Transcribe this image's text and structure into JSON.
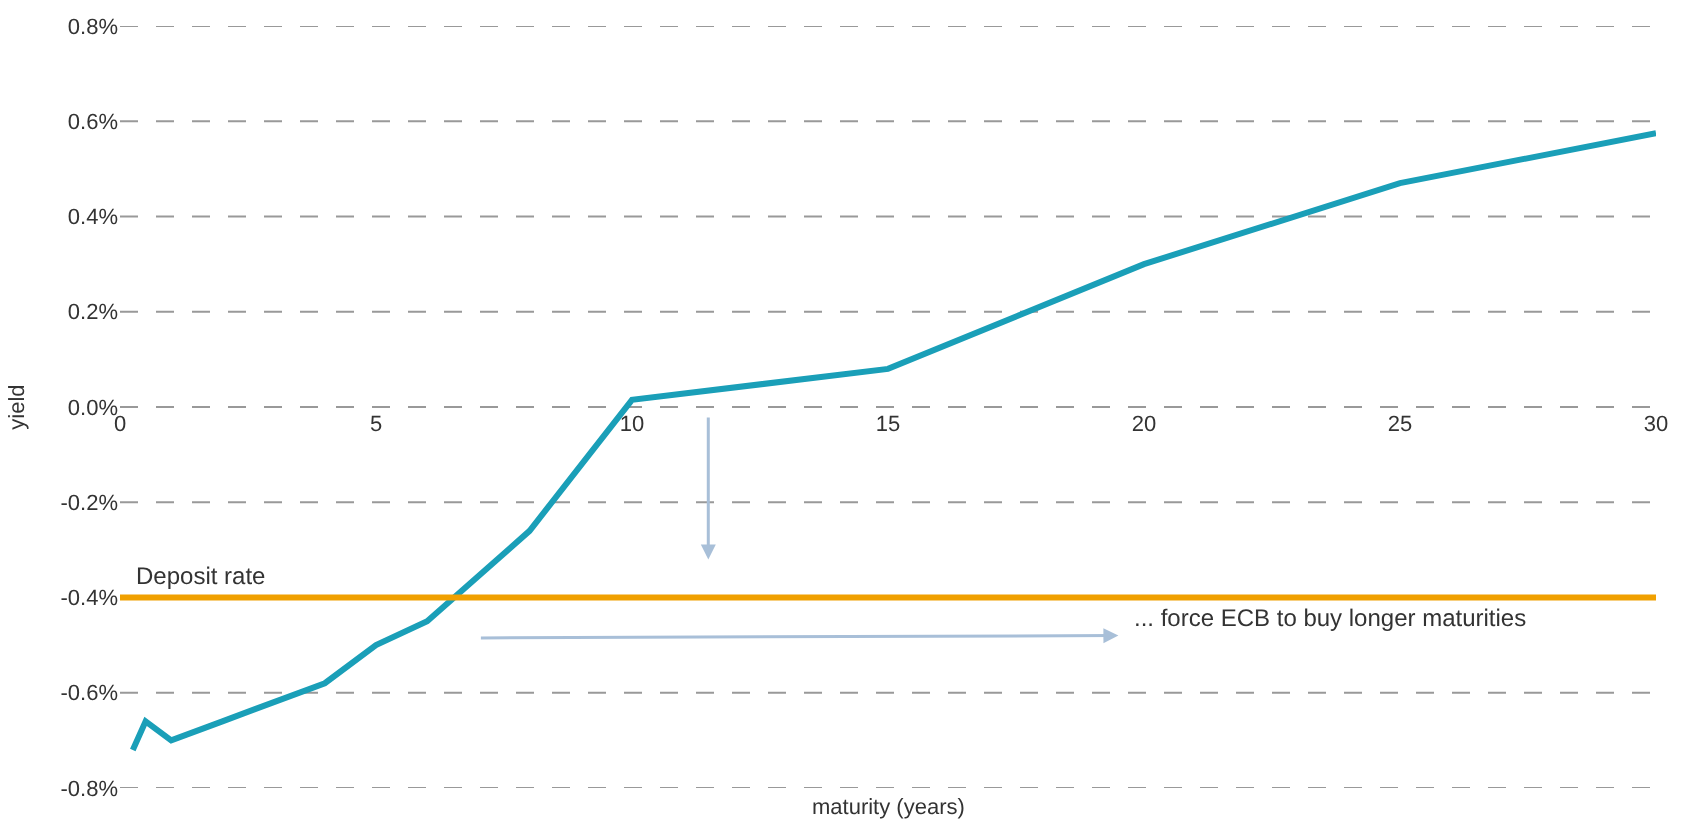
{
  "chart_data": {
    "type": "line",
    "xlabel": "maturity (years)",
    "ylabel": "yield",
    "x": [
      0.25,
      0.5,
      1,
      2,
      4,
      5,
      6,
      8,
      10,
      15,
      20,
      25,
      30
    ],
    "series": [
      {
        "color": "#1a9fb8",
        "values": [
          -0.72,
          -0.66,
          -0.7,
          -0.66,
          -0.58,
          -0.5,
          -0.45,
          -0.26,
          0.015,
          0.08,
          0.3,
          0.47,
          0.575
        ]
      }
    ],
    "xlim": [
      0,
      30
    ],
    "xticks": [
      0,
      5,
      10,
      15,
      20,
      25,
      30
    ],
    "ylim": [
      -0.8,
      0.8
    ],
    "yticks": [
      {
        "value": -0.8,
        "label": "-0.8%"
      },
      {
        "value": -0.6,
        "label": "-0.6%"
      },
      {
        "value": -0.4,
        "label": "-0.4%"
      },
      {
        "value": -0.2,
        "label": "-0.2%"
      },
      {
        "value": 0,
        "label": "0.0%"
      },
      {
        "value": 0.2,
        "label": "0.2%"
      },
      {
        "value": 0.4,
        "label": "0.4%"
      },
      {
        "value": 0.6,
        "label": "0.6%"
      },
      {
        "value": 0.8,
        "label": "0.8%"
      }
    ],
    "ref_lines": [
      {
        "axis": "y",
        "value": -0.4,
        "label": "Deposit rate",
        "color": "#f0a000"
      }
    ],
    "annotations": [
      "... force ECB to buy longer maturities"
    ],
    "grid": "y",
    "marker": "none",
    "line_style": "solid"
  }
}
